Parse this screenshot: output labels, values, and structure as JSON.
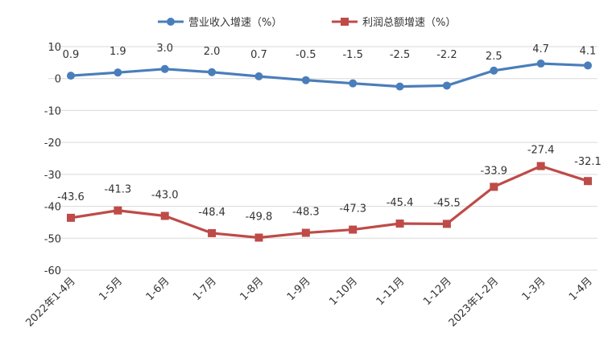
{
  "chart_data": {
    "type": "line",
    "categories": [
      "2022年1-4月",
      "1-5月",
      "1-6月",
      "1-7月",
      "1-8月",
      "1-9月",
      "1-10月",
      "1-11月",
      "1-12月",
      "2023年1-2月",
      "1-3月",
      "1-4月"
    ],
    "series": [
      {
        "name": "营业收入增速（%）",
        "color": "#4a7ebb",
        "marker": "circle",
        "values": [
          0.9,
          1.9,
          3.0,
          2.0,
          0.7,
          -0.5,
          -1.5,
          -2.5,
          -2.2,
          2.5,
          4.7,
          4.1
        ],
        "labels": [
          "0.9",
          "1.9",
          "3.0",
          "2.0",
          "0.7",
          "-0.5",
          "-1.5",
          "-2.5",
          "-2.2",
          "2.5",
          "4.7",
          "4.1"
        ]
      },
      {
        "name": "利润总额增速（%）",
        "color": "#be4b48",
        "marker": "square",
        "values": [
          -43.6,
          -41.3,
          -43.0,
          -48.4,
          -49.8,
          -48.3,
          -47.3,
          -45.4,
          -45.5,
          -33.9,
          -27.4,
          -32.1
        ],
        "labels": [
          "-43.6",
          "-41.3",
          "-43.0",
          "-48.4",
          "-49.8",
          "-48.3",
          "-47.3",
          "-45.4",
          "-45.5",
          "-33.9",
          "-27.4",
          "-32.1"
        ]
      }
    ],
    "yticks": [
      10,
      0,
      -10,
      -20,
      -30,
      -40,
      -50,
      -60
    ],
    "ylim": [
      -60,
      10
    ],
    "grid": true,
    "legend_position": "top"
  }
}
